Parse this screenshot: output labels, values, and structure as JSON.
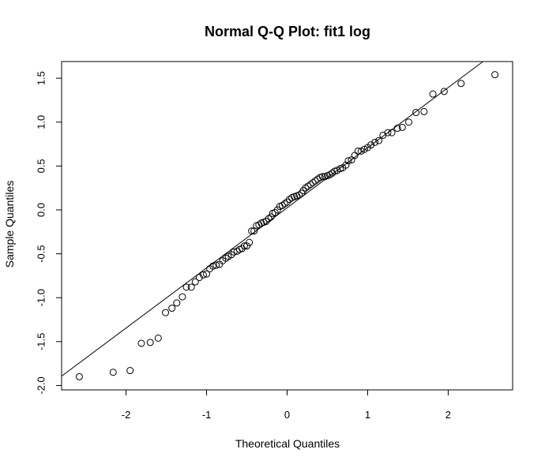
{
  "chart_data": {
    "type": "scatter",
    "title": "Normal Q-Q Plot: fit1 log",
    "xlabel": "Theoretical Quantiles",
    "ylabel": "Sample Quantiles",
    "xlim": [
      -2.8,
      2.8
    ],
    "ylim": [
      -2.05,
      1.69
    ],
    "x_ticks": [
      -2,
      -1,
      0,
      1,
      2
    ],
    "y_ticks": [
      -2.0,
      -1.5,
      -1.0,
      -0.5,
      0.0,
      0.5,
      1.0,
      1.5
    ],
    "x_tick_labels": [
      "-2",
      "-1",
      "0",
      "1",
      "2"
    ],
    "y_tick_labels": [
      "-2.0",
      "-1.5",
      "-1.0",
      "-0.5",
      "0.0",
      "0.5",
      "1.0",
      "1.5"
    ],
    "reference_line": {
      "intercept": 0.024,
      "slope": 0.685
    },
    "points": [
      [
        -2.58,
        -1.9
      ],
      [
        -2.16,
        -1.85
      ],
      [
        -1.95,
        -1.83
      ],
      [
        -1.81,
        -1.52
      ],
      [
        -1.7,
        -1.51
      ],
      [
        -1.6,
        -1.46
      ],
      [
        -1.51,
        -1.17
      ],
      [
        -1.43,
        -1.12
      ],
      [
        -1.37,
        -1.06
      ],
      [
        -1.3,
        -0.99
      ],
      [
        -1.25,
        -0.88
      ],
      [
        -1.19,
        -0.88
      ],
      [
        -1.14,
        -0.82
      ],
      [
        -1.09,
        -0.77
      ],
      [
        -1.04,
        -0.74
      ],
      [
        -1.0,
        -0.73
      ],
      [
        -0.96,
        -0.67
      ],
      [
        -0.92,
        -0.64
      ],
      [
        -0.88,
        -0.63
      ],
      [
        -0.84,
        -0.62
      ],
      [
        -0.8,
        -0.58
      ],
      [
        -0.76,
        -0.55
      ],
      [
        -0.73,
        -0.53
      ],
      [
        -0.69,
        -0.51
      ],
      [
        -0.66,
        -0.48
      ],
      [
        -0.62,
        -0.47
      ],
      [
        -0.59,
        -0.45
      ],
      [
        -0.56,
        -0.44
      ],
      [
        -0.53,
        -0.41
      ],
      [
        -0.5,
        -0.41
      ],
      [
        -0.47,
        -0.37
      ],
      [
        -0.44,
        -0.24
      ],
      [
        -0.41,
        -0.24
      ],
      [
        -0.38,
        -0.18
      ],
      [
        -0.35,
        -0.17
      ],
      [
        -0.32,
        -0.15
      ],
      [
        -0.29,
        -0.14
      ],
      [
        -0.26,
        -0.13
      ],
      [
        -0.23,
        -0.1
      ],
      [
        -0.2,
        -0.08
      ],
      [
        -0.18,
        -0.04
      ],
      [
        -0.15,
        -0.03
      ],
      [
        -0.12,
        0.0
      ],
      [
        -0.09,
        0.04
      ],
      [
        -0.06,
        0.05
      ],
      [
        -0.03,
        0.07
      ],
      [
        0.0,
        0.09
      ],
      [
        0.03,
        0.12
      ],
      [
        0.06,
        0.14
      ],
      [
        0.09,
        0.15
      ],
      [
        0.12,
        0.16
      ],
      [
        0.15,
        0.17
      ],
      [
        0.18,
        0.19
      ],
      [
        0.2,
        0.22
      ],
      [
        0.23,
        0.25
      ],
      [
        0.26,
        0.27
      ],
      [
        0.29,
        0.29
      ],
      [
        0.32,
        0.31
      ],
      [
        0.35,
        0.33
      ],
      [
        0.38,
        0.35
      ],
      [
        0.41,
        0.37
      ],
      [
        0.44,
        0.38
      ],
      [
        0.47,
        0.38
      ],
      [
        0.5,
        0.39
      ],
      [
        0.53,
        0.4
      ],
      [
        0.56,
        0.42
      ],
      [
        0.59,
        0.44
      ],
      [
        0.62,
        0.45
      ],
      [
        0.66,
        0.47
      ],
      [
        0.69,
        0.48
      ],
      [
        0.73,
        0.51
      ],
      [
        0.76,
        0.56
      ],
      [
        0.8,
        0.57
      ],
      [
        0.84,
        0.62
      ],
      [
        0.88,
        0.67
      ],
      [
        0.92,
        0.67
      ],
      [
        0.96,
        0.69
      ],
      [
        1.0,
        0.71
      ],
      [
        1.04,
        0.74
      ],
      [
        1.09,
        0.77
      ],
      [
        1.14,
        0.79
      ],
      [
        1.19,
        0.85
      ],
      [
        1.25,
        0.88
      ],
      [
        1.3,
        0.88
      ],
      [
        1.37,
        0.93
      ],
      [
        1.43,
        0.94
      ],
      [
        1.51,
        1.0
      ],
      [
        1.6,
        1.11
      ],
      [
        1.7,
        1.12
      ],
      [
        1.81,
        1.32
      ],
      [
        1.95,
        1.35
      ],
      [
        2.16,
        1.44
      ],
      [
        2.58,
        1.54
      ]
    ]
  }
}
